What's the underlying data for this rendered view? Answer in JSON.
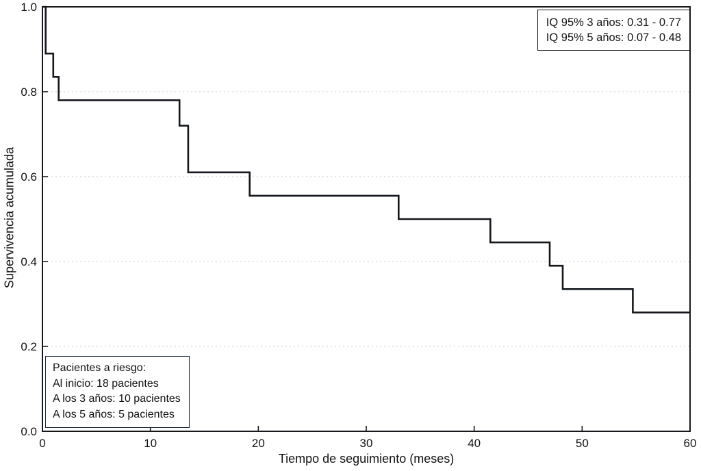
{
  "chart_data": {
    "type": "line",
    "subtype": "kaplan-meier-step-curve",
    "title": "",
    "xlabel": "Tiempo de seguimiento (meses)",
    "ylabel": "Supervivencia acumulada",
    "xlim": [
      0,
      60
    ],
    "ylim": [
      0,
      1
    ],
    "xticks": [
      0,
      10,
      20,
      30,
      40,
      50,
      60
    ],
    "yticks": [
      0.0,
      0.2,
      0.4,
      0.6,
      0.8,
      1.0
    ],
    "ytick_labels": [
      "0.0",
      "0.2",
      "0.4",
      "0.6",
      "0.8",
      "1.0"
    ],
    "grid": "horizontal-dotted",
    "legend": "none",
    "line_color": "#14171c",
    "frame_color": "#16181c",
    "grid_color": "#c9c9c9",
    "steps": [
      [
        0,
        1.0
      ],
      [
        0.3,
        0.89
      ],
      [
        1.0,
        0.835
      ],
      [
        1.5,
        0.78
      ],
      [
        12.7,
        0.72
      ],
      [
        13.5,
        0.61
      ],
      [
        19.2,
        0.555
      ],
      [
        33,
        0.5
      ],
      [
        41.5,
        0.445
      ],
      [
        47,
        0.39
      ],
      [
        48.2,
        0.335
      ],
      [
        54.7,
        0.28
      ]
    ],
    "x_end": 60,
    "annotations": {
      "ci_box": [
        "IQ 95% 3 años: 0.31 - 0.77",
        "IQ 95% 5 años: 0.07 - 0.48"
      ],
      "risk_box": [
        "Pacientes a riesgo:",
        "Al inicio: 18 pacientes",
        "A los 3 años: 10 pacientes",
        "A los 5 años: 5 pacientes"
      ]
    }
  }
}
